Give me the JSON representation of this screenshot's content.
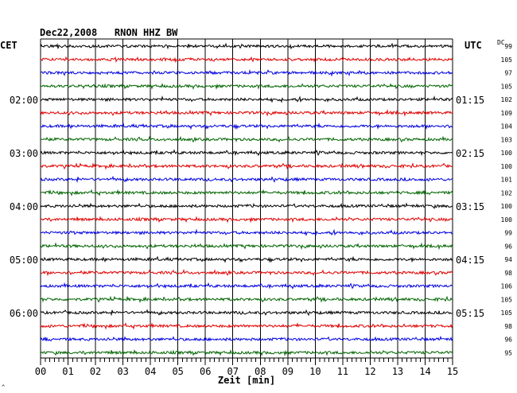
{
  "header": {
    "title": "Dec22,2008   RNON HHZ BW",
    "left_tz": "CET",
    "right_tz": "UTC",
    "dc_label": "DC"
  },
  "corner_mark": "^",
  "colors": {
    "trace_cycle": [
      "#000000",
      "#e00000",
      "#0000e0",
      "#006400"
    ],
    "grid": "#000000",
    "background": "#ffffff"
  },
  "chart_data": {
    "type": "line",
    "title": "Dec22,2008   RNON HHZ BW",
    "xlabel": "Zeit [min]",
    "ylabel": "",
    "xlim": [
      0,
      15
    ],
    "x_ticks": [
      "00",
      "01",
      "02",
      "03",
      "04",
      "05",
      "06",
      "07",
      "08",
      "09",
      "10",
      "11",
      "12",
      "13",
      "14",
      "15"
    ],
    "left_hour_labels": [
      "02:00",
      "03:00",
      "04:00",
      "05:00",
      "06:00"
    ],
    "right_hour_labels": [
      "01:15",
      "02:15",
      "03:15",
      "04:15",
      "05:15"
    ],
    "trace_count": 24,
    "dc_offsets": [
      99,
      105,
      97,
      105,
      102,
      109,
      104,
      103,
      100,
      100,
      101,
      102,
      100,
      100,
      99,
      96,
      94,
      98,
      106,
      105,
      105,
      98,
      96,
      95
    ],
    "grid": true
  }
}
